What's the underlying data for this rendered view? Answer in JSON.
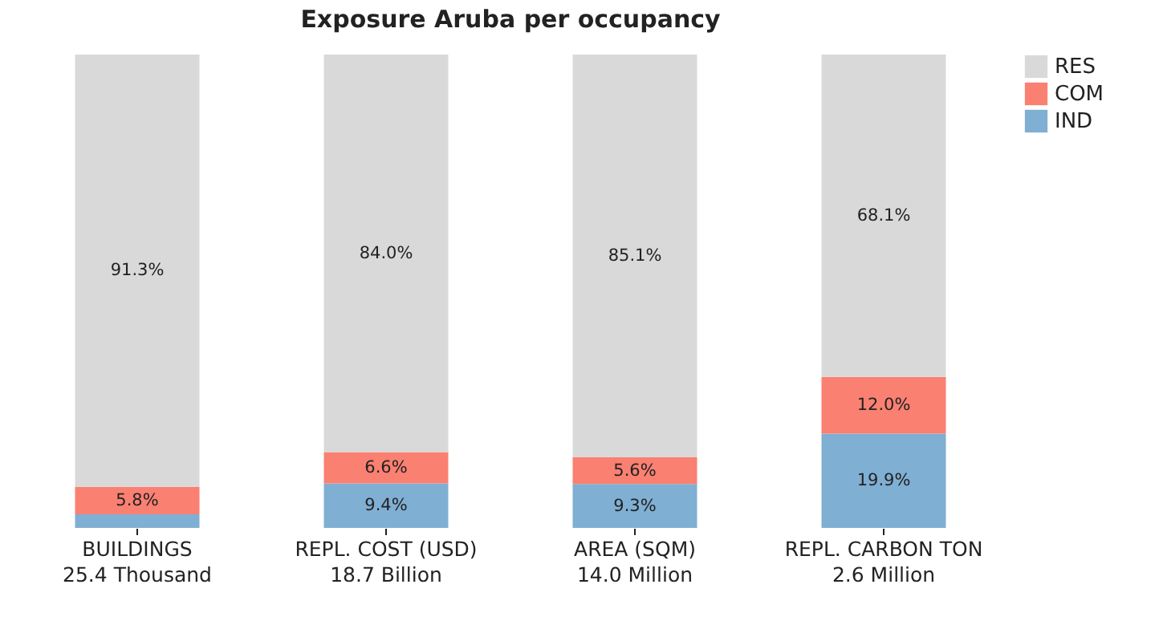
{
  "chart_data": {
    "type": "bar",
    "title": "Exposure Aruba per occupancy",
    "stacked": true,
    "categories": [
      "BUILDINGS\n25.4 Thousand",
      "REPL. COST (USD)\n18.7 Billion",
      "AREA (SQM)\n14.0 Million",
      "REPL. CARBON TON\n2.6 Million"
    ],
    "ylim": [
      0,
      100
    ],
    "tick_labels": "x",
    "legend": "right",
    "series": [
      {
        "name": "IND",
        "color": "#7fafd3",
        "values": [
          2.9,
          9.4,
          9.3,
          19.9
        ],
        "value_labels": [
          null,
          "9.4%",
          "9.3%",
          "19.9%"
        ]
      },
      {
        "name": "COM",
        "color": "#fa8072",
        "values": [
          5.8,
          6.6,
          5.6,
          12.0
        ],
        "value_labels": [
          "5.8%",
          "6.6%",
          "5.6%",
          "12.0%"
        ]
      },
      {
        "name": "RES",
        "color": "#d9d9d9",
        "values": [
          91.3,
          84.0,
          85.1,
          68.1
        ],
        "value_labels": [
          "91.3%",
          "84.0%",
          "85.1%",
          "68.1%"
        ]
      }
    ]
  }
}
